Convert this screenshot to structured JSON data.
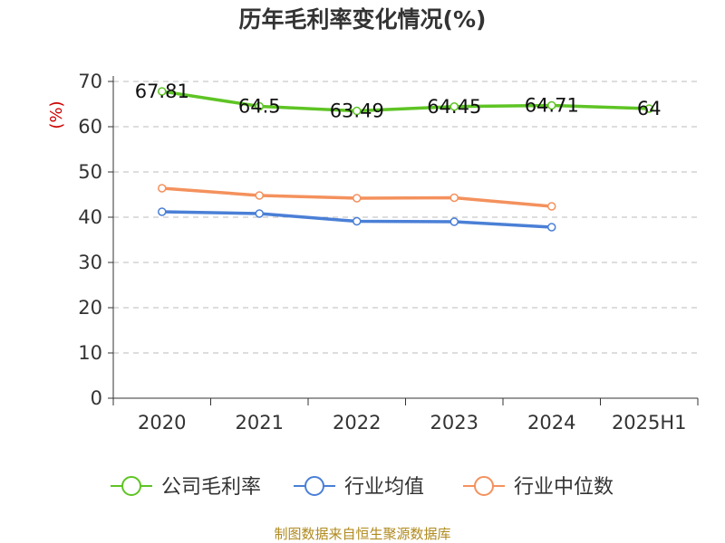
{
  "chart_data": {
    "type": "line",
    "title": "历年毛利率变化情况(%)",
    "ylabel": "(%)",
    "xlabel": "",
    "categories": [
      "2020",
      "2021",
      "2022",
      "2023",
      "2024",
      "2025H1"
    ],
    "yticks": [
      "0",
      "10",
      "20",
      "30",
      "40",
      "50",
      "60",
      "70"
    ],
    "ylim": [
      0,
      70
    ],
    "grid": true,
    "legend_position": "bottom",
    "series": [
      {
        "name": "公司毛利率",
        "color": "#5ec424",
        "values": [
          67.81,
          64.5,
          63.49,
          64.45,
          64.71,
          64
        ],
        "labels": [
          "67.81",
          "64.5",
          "63.49",
          "64.45",
          "64.71",
          "64"
        ]
      },
      {
        "name": "行业均值",
        "color": "#4a7fd6",
        "values": [
          41.2,
          40.8,
          39.1,
          39.0,
          37.8,
          null
        ],
        "labels": []
      },
      {
        "name": "行业中位数",
        "color": "#f4915d",
        "values": [
          46.4,
          44.8,
          44.2,
          44.3,
          42.4,
          null
        ],
        "labels": []
      }
    ]
  },
  "footer": {
    "source": "制图数据来自恒生聚源数据库"
  }
}
